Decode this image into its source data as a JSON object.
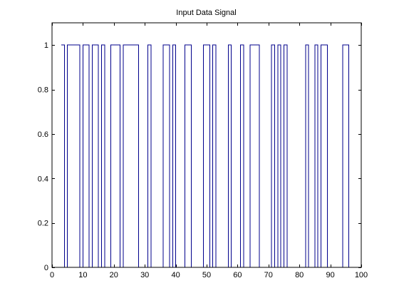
{
  "chart_data": {
    "type": "line",
    "style": "stairs",
    "title": "Input Data Signal",
    "xlabel": "",
    "ylabel": "",
    "xlim": [
      0,
      100
    ],
    "ylim": [
      0,
      1.1
    ],
    "xticks": [
      0,
      10,
      20,
      30,
      40,
      50,
      60,
      70,
      80,
      90,
      100
    ],
    "yticks": [
      0,
      0.2,
      0.4,
      0.6,
      0.8,
      1
    ],
    "xtick_labels": [
      "0",
      "10",
      "20",
      "30",
      "40",
      "50",
      "60",
      "70",
      "80",
      "90",
      "100"
    ],
    "ytick_labels": [
      "0",
      "0.2",
      "0.4",
      "0.6",
      "0.8",
      "1"
    ],
    "grid": false,
    "legend": false,
    "line_color": "#00008b",
    "series": [
      {
        "x": [
          3,
          4,
          5,
          9,
          10,
          11,
          12,
          13,
          14,
          15,
          16,
          17,
          18,
          19,
          20,
          21,
          22,
          23,
          24,
          25,
          26,
          27,
          28,
          29,
          30,
          31,
          32,
          33,
          34,
          35,
          36,
          37,
          38,
          39,
          40,
          41,
          42,
          43,
          44,
          45,
          46,
          47,
          48,
          49,
          50,
          51,
          52,
          53,
          54,
          55,
          56,
          57,
          58,
          59,
          60,
          61,
          62,
          63,
          64,
          65,
          66,
          67,
          68,
          69,
          70,
          71,
          72,
          73,
          74,
          75,
          76,
          77,
          78,
          79,
          80,
          81,
          82,
          83,
          84,
          85,
          86,
          87,
          88,
          89,
          90,
          91,
          92,
          93,
          94,
          95,
          96
        ],
        "values": [
          1,
          0,
          1,
          0,
          1,
          1,
          0,
          1,
          1,
          0,
          1,
          0,
          0,
          1,
          1,
          1,
          0,
          1,
          1,
          1,
          1,
          1,
          0,
          0,
          0,
          1,
          0,
          0,
          0,
          0,
          1,
          1,
          0,
          1,
          0,
          0,
          0,
          1,
          1,
          0,
          0,
          0,
          0,
          1,
          1,
          0,
          1,
          0,
          0,
          0,
          0,
          1,
          0,
          0,
          0,
          1,
          0,
          0,
          1,
          1,
          1,
          0,
          0,
          0,
          0,
          1,
          0,
          1,
          0,
          1,
          0,
          0,
          0,
          0,
          0,
          0,
          1,
          0,
          0,
          1,
          0,
          1,
          1,
          0,
          0,
          0,
          0,
          0,
          1,
          1,
          0
        ]
      }
    ]
  }
}
